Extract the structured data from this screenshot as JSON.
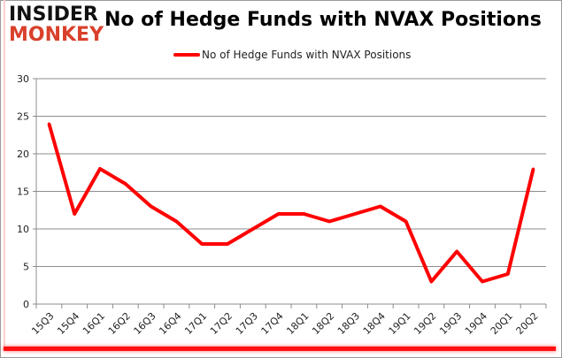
{
  "logo": {
    "line1": "INSIDER",
    "line2": "MONKEY"
  },
  "chart_data": {
    "type": "line",
    "title": "No of Hedge Funds with NVAX Positions",
    "categories": [
      "15Q3",
      "15Q4",
      "16Q1",
      "16Q2",
      "16Q3",
      "16Q4",
      "17Q1",
      "17Q2",
      "17Q3",
      "17Q4",
      "18Q1",
      "18Q2",
      "18Q3",
      "18Q4",
      "19Q1",
      "19Q2",
      "19Q3",
      "19Q4",
      "20Q1",
      "20Q2"
    ],
    "series": [
      {
        "name": "No of Hedge Funds with NVAX Positions",
        "color": "#ff0000",
        "values": [
          24,
          12,
          18,
          16,
          13,
          11,
          8,
          8,
          10,
          12,
          12,
          11,
          12,
          13,
          11,
          3,
          7,
          3,
          4,
          18
        ]
      }
    ],
    "ylim": [
      0,
      30
    ],
    "yticks": [
      0,
      5,
      10,
      15,
      20,
      25,
      30
    ],
    "grid": true,
    "legend": "top-center"
  }
}
